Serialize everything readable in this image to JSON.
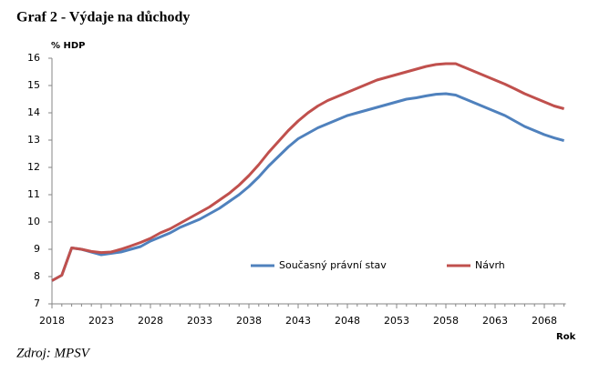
{
  "chart_data": {
    "type": "line",
    "title": "Graf 2 - Výdaje na důchody",
    "y_label": "% HDP",
    "x_label": "Rok",
    "source": "Zdroj: MPSV",
    "x": [
      2018,
      2019,
      2020,
      2021,
      2022,
      2023,
      2024,
      2025,
      2026,
      2027,
      2028,
      2029,
      2030,
      2031,
      2032,
      2033,
      2034,
      2035,
      2036,
      2037,
      2038,
      2039,
      2040,
      2041,
      2042,
      2043,
      2044,
      2045,
      2046,
      2047,
      2048,
      2049,
      2050,
      2051,
      2052,
      2053,
      2054,
      2055,
      2056,
      2057,
      2058,
      2059,
      2060,
      2061,
      2062,
      2063,
      2064,
      2065,
      2066,
      2067,
      2068,
      2069,
      2070
    ],
    "series": [
      {
        "name": "Současný právní stav",
        "color": "#4f81bd",
        "values": [
          7.85,
          8.05,
          9.05,
          9.0,
          8.9,
          8.8,
          8.85,
          8.9,
          9.0,
          9.1,
          9.3,
          9.45,
          9.6,
          9.8,
          9.95,
          10.1,
          10.3,
          10.5,
          10.75,
          11.0,
          11.3,
          11.65,
          12.05,
          12.4,
          12.75,
          13.05,
          13.25,
          13.45,
          13.6,
          13.75,
          13.9,
          14.0,
          14.1,
          14.2,
          14.3,
          14.4,
          14.5,
          14.55,
          14.62,
          14.68,
          14.7,
          14.65,
          14.5,
          14.35,
          14.2,
          14.05,
          13.9,
          13.7,
          13.5,
          13.35,
          13.2,
          13.08,
          12.98
        ]
      },
      {
        "name": "Návrh",
        "color": "#c0504d",
        "values": [
          7.85,
          8.05,
          9.05,
          9.0,
          8.92,
          8.88,
          8.9,
          9.0,
          9.12,
          9.25,
          9.4,
          9.6,
          9.75,
          9.95,
          10.15,
          10.35,
          10.55,
          10.8,
          11.05,
          11.35,
          11.7,
          12.1,
          12.55,
          12.95,
          13.35,
          13.7,
          14.0,
          14.25,
          14.45,
          14.6,
          14.75,
          14.9,
          15.05,
          15.2,
          15.3,
          15.4,
          15.5,
          15.6,
          15.7,
          15.77,
          15.8,
          15.8,
          15.65,
          15.5,
          15.35,
          15.2,
          15.05,
          14.88,
          14.7,
          14.55,
          14.4,
          14.25,
          14.15
        ]
      }
    ],
    "xlim": [
      2018,
      2070
    ],
    "xticks": [
      2018,
      2023,
      2028,
      2033,
      2038,
      2043,
      2048,
      2053,
      2058,
      2063,
      2068
    ],
    "ylim": [
      7,
      16
    ],
    "yticks": [
      7,
      8,
      9,
      10,
      11,
      12,
      13,
      14,
      15,
      16
    ],
    "grid": false,
    "legend": "inside"
  }
}
